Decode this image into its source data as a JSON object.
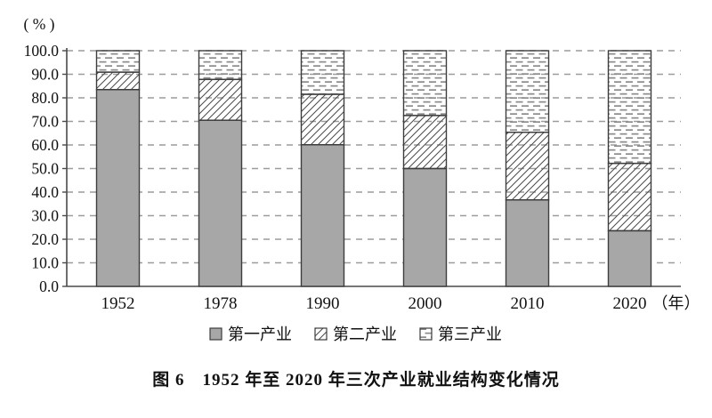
{
  "title": "图 6　1952 年至 2020 年三次产业就业结构变化情况",
  "colors": {
    "bar_fill": "#a7a7a7",
    "outline": "#3d3d3d",
    "hatch_line": "#4a4a4a",
    "dash_mark": "#8c8c8c",
    "grid_line": "#9c9c9c",
    "axis_line": "#4a4a4a",
    "text": "#111111"
  },
  "chart_data": {
    "type": "bar",
    "stacked": true,
    "title": "图 6　1952 年至 2020 年三次产业就业结构变化情况",
    "unit_label": "( % )",
    "x_unit_label": "（年）",
    "categories": [
      "1952",
      "1978",
      "1990",
      "2000",
      "2010",
      "2020"
    ],
    "series": [
      {
        "name": "第一产业",
        "style": "solid-gray",
        "values": [
          83.5,
          70.5,
          60.1,
          50.0,
          36.7,
          23.6
        ]
      },
      {
        "name": "第二产业",
        "style": "diagonal-hatch",
        "values": [
          7.4,
          17.3,
          21.4,
          22.5,
          28.7,
          28.6
        ]
      },
      {
        "name": "第三产业",
        "style": "dash-hatch",
        "values": [
          9.1,
          12.2,
          18.5,
          27.5,
          34.6,
          47.8
        ]
      }
    ],
    "ylim": [
      0,
      100
    ],
    "ytick_step": 10,
    "ytick_labels": [
      "100.0",
      "90.0",
      "80.0",
      "70.0",
      "60.0",
      "50.0",
      "40.0",
      "30.0",
      "20.0",
      "10.0",
      "0.0"
    ],
    "grid": "horizontal-dashed",
    "legend_position": "bottom"
  }
}
